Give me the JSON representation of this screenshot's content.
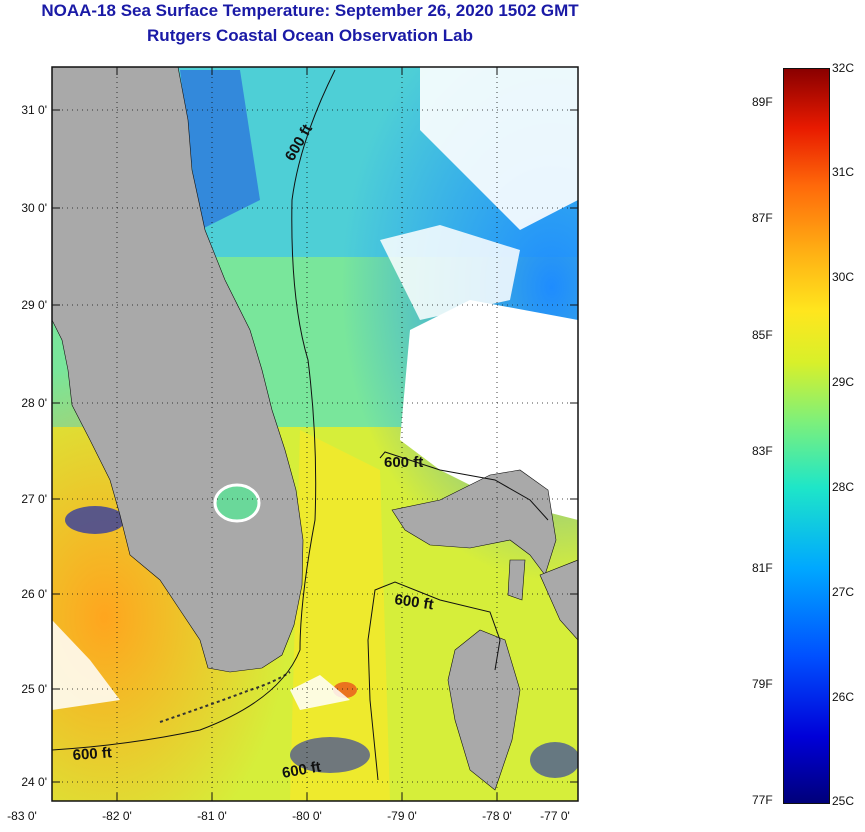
{
  "header": {
    "title_line1": "NOAA-18 Sea Surface Temperature:  September 26, 2020 1502 GMT",
    "title_line2": "Rutgers Coastal Ocean Observation Lab"
  },
  "map": {
    "lat_labels": [
      "31 0'",
      "30 0'",
      "29 0'",
      "28 0'",
      "27 0'",
      "26 0'",
      "25 0'",
      "24 0'"
    ],
    "lon_labels": [
      "-83 0'",
      "-82 0'",
      "-81 0'",
      "-80 0'",
      "-79 0'",
      "-78 0'",
      "-77 0'"
    ],
    "contour_labels": [
      "600 ft",
      "600 ft",
      "600 ft",
      "600 ft",
      "600 ft"
    ],
    "colors": {
      "land": "#a9a9a9",
      "cloud": "#ffffff",
      "frame": "#111111"
    }
  },
  "colorbar": {
    "celsius_labels": [
      "32C",
      "31C",
      "30C",
      "29C",
      "28C",
      "27C",
      "26C",
      "25C"
    ],
    "fahrenheit_labels": [
      "89F",
      "87F",
      "85F",
      "83F",
      "81F",
      "79F",
      "77F"
    ]
  }
}
